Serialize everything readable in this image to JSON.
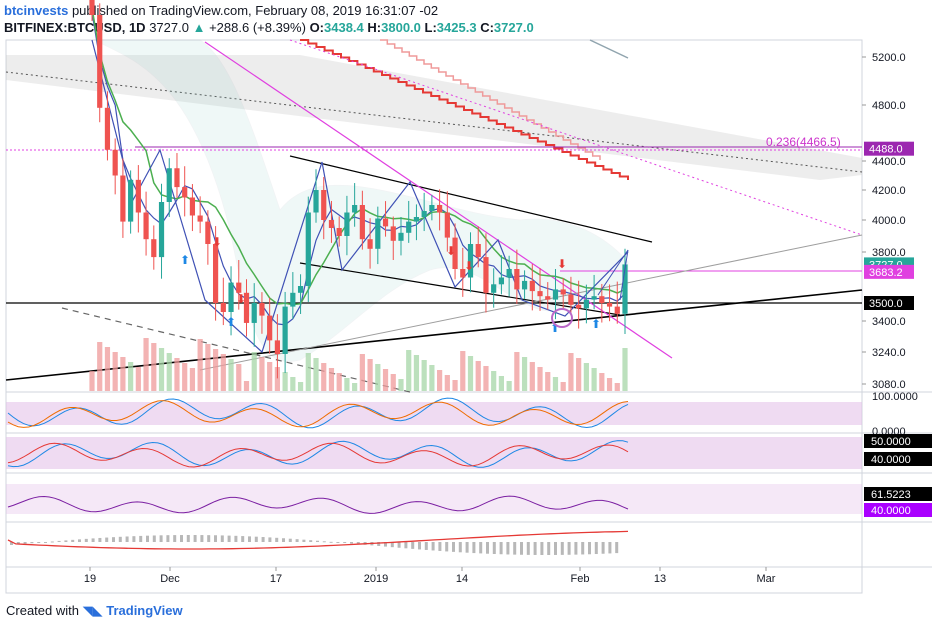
{
  "header": {
    "author": "btcinvests",
    "published_text": "published on TradingView.com, February 08, 2019 16:31:07 -02",
    "symbol": "BITFINEX:BTCUSD, 1D",
    "last": "3727.0",
    "change": "+288.6 (+8.39%)",
    "open_label": "O:",
    "open": "3438.4",
    "high_label": "H:",
    "high": "3800.0",
    "low_label": "L:",
    "low": "3425.3",
    "close_label": "C:",
    "close": "3727.0"
  },
  "footer": {
    "prefix": "Created with",
    "brand": "TradingView"
  },
  "colors": {
    "up": "#26a69a",
    "down": "#ef5350",
    "magenta": "#e040e0",
    "purple": "#9c27b0",
    "fib": "#cc33cc"
  },
  "chart_data": [
    {
      "type": "candlestick",
      "y_ticks": [
        "5200.0",
        "4800.0",
        "4400.0",
        "4200.0",
        "4000.0",
        "3800.0",
        "3400.0",
        "3240.0",
        "3080.0"
      ],
      "x_ticks": [
        "19",
        "Dec",
        "17",
        "2019",
        "14",
        "Feb",
        "13",
        "Mar"
      ],
      "price_labels": [
        {
          "text": "4488.0",
          "price": 4488,
          "color": "#9c27b0"
        },
        {
          "text": "3727.0",
          "price": 3727,
          "color": "#26a69a"
        },
        {
          "text": "3683.2",
          "price": 3683.2,
          "color": "#e040e0"
        },
        {
          "text": "3500.0",
          "price": 3500,
          "color": "#000000"
        }
      ],
      "annotation": "0.236(4466.5)",
      "close": [
        5550,
        4780,
        4480,
        4300,
        3990,
        4270,
        4050,
        3880,
        3770,
        4120,
        4350,
        4220,
        4150,
        4030,
        3990,
        3850,
        3500,
        3450,
        3620,
        3560,
        3390,
        3500,
        3430,
        3300,
        3230,
        3480,
        3560,
        3600,
        4050,
        4200,
        4000,
        3950,
        3900,
        4050,
        4100,
        3880,
        3820,
        4010,
        3960,
        3870,
        3920,
        3990,
        4020,
        4060,
        4100,
        4050,
        3890,
        3700,
        3650,
        3850,
        3770,
        3560,
        3610,
        3650,
        3700,
        3580,
        3630,
        3570,
        3540,
        3520,
        3580,
        3550,
        3490,
        3470,
        3520,
        3540,
        3500,
        3480,
        3440,
        3727
      ]
    },
    {
      "type": "line",
      "name_hint": "stochastic",
      "ticks": [
        "100.0000",
        "0.0000"
      ]
    },
    {
      "type": "line",
      "name_hint": "oscillator",
      "ticks": [
        "50.0000",
        "40.0000"
      ]
    },
    {
      "type": "line",
      "name_hint": "rsi",
      "ticks": [
        "61.5223",
        "40.0000"
      ]
    },
    {
      "type": "histogram",
      "name_hint": "macd"
    }
  ]
}
